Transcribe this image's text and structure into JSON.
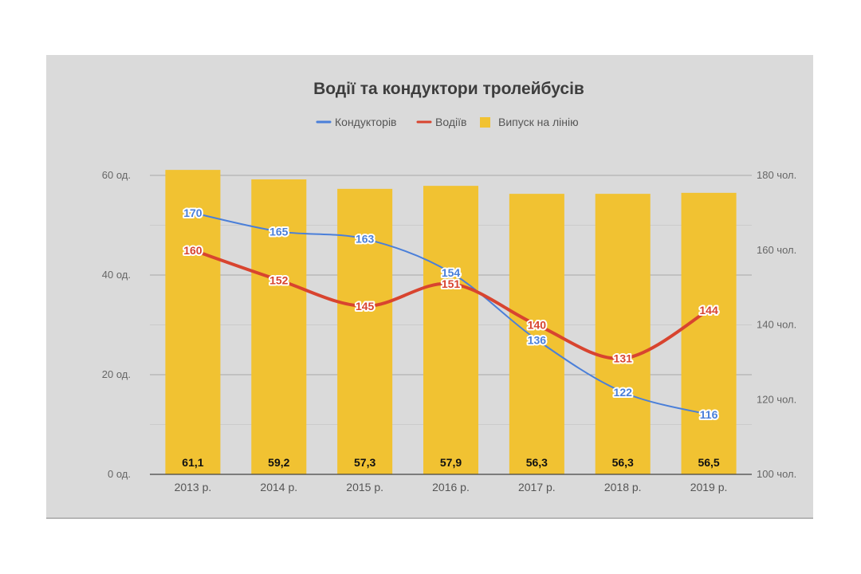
{
  "chart_data": {
    "type": "bar",
    "title": "Водії та кондуктори тролейбусів",
    "categories": [
      "2013 р.",
      "2014 р.",
      "2015 р.",
      "2016 р.",
      "2017 р.",
      "2018 р.",
      "2019 р."
    ],
    "legend_position": "top",
    "grid": true,
    "left_axis": {
      "ylim": [
        0,
        60
      ],
      "ticks": [
        "0 од.",
        "20 од.",
        "40 од.",
        "60 од."
      ],
      "tick_values": [
        0,
        20,
        40,
        60
      ]
    },
    "right_axis": {
      "ylim": [
        100,
        180
      ],
      "ticks": [
        "100 чол.",
        "120 чол.",
        "140 чол.",
        "160 чол.",
        "180 чол."
      ],
      "tick_values": [
        100,
        120,
        140,
        160,
        180
      ]
    },
    "series": [
      {
        "name": "Кондукторів",
        "type": "line",
        "axis": "right",
        "color": "#4a7fd9",
        "values": [
          170,
          165,
          163,
          154,
          136,
          122,
          116
        ],
        "labels": [
          "170",
          "165",
          "163",
          "154",
          "136",
          "122",
          "116"
        ]
      },
      {
        "name": "Водіїв",
        "type": "line",
        "axis": "right",
        "color": "#d8442f",
        "values": [
          160,
          152,
          145,
          151,
          140,
          131,
          144
        ],
        "labels": [
          "160",
          "152",
          "145",
          "151",
          "140",
          "131",
          "144"
        ]
      },
      {
        "name": "Випуск на лінію",
        "type": "bar",
        "axis": "left",
        "color": "#f1c232",
        "values": [
          61.1,
          59.2,
          57.3,
          57.9,
          56.3,
          56.3,
          56.5
        ],
        "labels": [
          "61,1",
          "59,2",
          "57,3",
          "57,9",
          "56,3",
          "56,3",
          "56,5"
        ]
      }
    ]
  }
}
